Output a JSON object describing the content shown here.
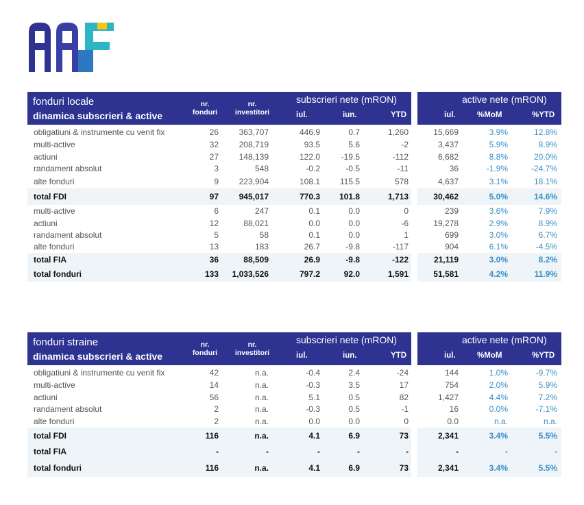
{
  "logo": {
    "name": "AAF"
  },
  "colors": {
    "header": "#2e3290",
    "shade": "#eef4f7",
    "pct": "#3a8fc8"
  },
  "tables": [
    {
      "title1": "fonduri locale",
      "title2": "dinamica subscrieri & active",
      "col_nr_fonduri": "nr.\nfonduri",
      "col_nr_investitori": "nr.\ninvestitori",
      "group_subscrieri": "subscrieri nete (mRON)",
      "group_active": "active nete (mRON)",
      "sub_iul": "iul.",
      "sub_iun": "iun.",
      "sub_ytd": "YTD",
      "act_iul": "iul.",
      "act_mom": "%MoM",
      "act_ytd": "%YTD",
      "rows": [
        {
          "label": "obligatiuni & instrumente cu venit fix",
          "nf": "26",
          "ni": "363,707",
          "s_iul": "446.9",
          "s_iun": "0.7",
          "s_ytd": "1,260",
          "a_iul": "15,669",
          "mom": "3.9%",
          "ytd": "12.8%"
        },
        {
          "label": "multi-active",
          "nf": "32",
          "ni": "208,719",
          "s_iul": "93.5",
          "s_iun": "5.6",
          "s_ytd": "-2",
          "a_iul": "3,437",
          "mom": "5.9%",
          "ytd": "8.9%"
        },
        {
          "label": "actiuni",
          "nf": "27",
          "ni": "148,139",
          "s_iul": "122.0",
          "s_iun": "-19.5",
          "s_ytd": "-112",
          "a_iul": "6,682",
          "mom": "8.8%",
          "ytd": "20.0%"
        },
        {
          "label": "randament absolut",
          "nf": "3",
          "ni": "548",
          "s_iul": "-0.2",
          "s_iun": "-0.5",
          "s_ytd": "-11",
          "a_iul": "36",
          "mom": "-1.9%",
          "ytd": "-24.7%"
        },
        {
          "label": "alte fonduri",
          "nf": "9",
          "ni": "223,904",
          "s_iul": "108.1",
          "s_iun": "115.5",
          "s_ytd": "578",
          "a_iul": "4,637",
          "mom": "3.1%",
          "ytd": "18.1%"
        },
        {
          "label": "total FDI",
          "nf": "97",
          "ni": "945,017",
          "s_iul": "770.3",
          "s_iun": "101.8",
          "s_ytd": "1,713",
          "a_iul": "30,462",
          "mom": "5.0%",
          "ytd": "14.6%"
        },
        {
          "label": "multi-active",
          "nf": "6",
          "ni": "247",
          "s_iul": "0.1",
          "s_iun": "0.0",
          "s_ytd": "0",
          "a_iul": "239",
          "mom": "3.6%",
          "ytd": "7.9%"
        },
        {
          "label": "actiuni",
          "nf": "12",
          "ni": "88,021",
          "s_iul": "0.0",
          "s_iun": "0.0",
          "s_ytd": "-6",
          "a_iul": "19,278",
          "mom": "2.9%",
          "ytd": "8.9%"
        },
        {
          "label": "randament absolut",
          "nf": "5",
          "ni": "58",
          "s_iul": "0.1",
          "s_iun": "0.0",
          "s_ytd": "1",
          "a_iul": "699",
          "mom": "3.0%",
          "ytd": "6.7%"
        },
        {
          "label": "alte fonduri",
          "nf": "13",
          "ni": "183",
          "s_iul": "26.7",
          "s_iun": "-9.8",
          "s_ytd": "-117",
          "a_iul": "904",
          "mom": "6.1%",
          "ytd": "-4.5%"
        },
        {
          "label": "total FIA",
          "nf": "36",
          "ni": "88,509",
          "s_iul": "26.9",
          "s_iun": "-9.8",
          "s_ytd": "-122",
          "a_iul": "21,119",
          "mom": "3.0%",
          "ytd": "8.2%"
        },
        {
          "label": "total fonduri",
          "nf": "133",
          "ni": "1,033,526",
          "s_iul": "797.2",
          "s_iun": "92.0",
          "s_ytd": "1,591",
          "a_iul": "51,581",
          "mom": "4.2%",
          "ytd": "11.9%"
        }
      ]
    },
    {
      "title1": "fonduri straine",
      "title2": "dinamica subscrieri & active",
      "col_nr_fonduri": "nr.\nfonduri",
      "col_nr_investitori": "nr.\ninvestitori",
      "group_subscrieri": "subscrieri nete (mRON)",
      "group_active": "active nete (mRON)",
      "sub_iul": "iul.",
      "sub_iun": "iun.",
      "sub_ytd": "YTD",
      "act_iul": "iul.",
      "act_mom": "%MoM",
      "act_ytd": "%YTD",
      "rows": [
        {
          "label": "obligatiuni & instrumente cu venit fix",
          "nf": "42",
          "ni": "n.a.",
          "s_iul": "-0.4",
          "s_iun": "2.4",
          "s_ytd": "-24",
          "a_iul": "144",
          "mom": "1.0%",
          "ytd": "-9.7%"
        },
        {
          "label": "multi-active",
          "nf": "14",
          "ni": "n.a.",
          "s_iul": "-0.3",
          "s_iun": "3.5",
          "s_ytd": "17",
          "a_iul": "754",
          "mom": "2.0%",
          "ytd": "5.9%"
        },
        {
          "label": "actiuni",
          "nf": "56",
          "ni": "n.a.",
          "s_iul": "5.1",
          "s_iun": "0.5",
          "s_ytd": "82",
          "a_iul": "1,427",
          "mom": "4.4%",
          "ytd": "7.2%"
        },
        {
          "label": "randament absolut",
          "nf": "2",
          "ni": "n.a.",
          "s_iul": "-0.3",
          "s_iun": "0.5",
          "s_ytd": "-1",
          "a_iul": "16",
          "mom": "0.0%",
          "ytd": "-7.1%"
        },
        {
          "label": "alte fonduri",
          "nf": "2",
          "ni": "n.a.",
          "s_iul": "0.0",
          "s_iun": "0.0",
          "s_ytd": "0",
          "a_iul": "0.0",
          "mom": "n.a.",
          "ytd": "n.a."
        },
        {
          "label": "total FDI",
          "nf": "116",
          "ni": "n.a.",
          "s_iul": "4.1",
          "s_iun": "6.9",
          "s_ytd": "73",
          "a_iul": "2,341",
          "mom": "3.4%",
          "ytd": "5.5%"
        },
        {
          "label": "total FIA",
          "nf": "-",
          "ni": "-",
          "s_iul": "-",
          "s_iun": "-",
          "s_ytd": "-",
          "a_iul": "-",
          "mom": "-",
          "ytd": "-"
        },
        {
          "label": "total fonduri",
          "nf": "116",
          "ni": "n.a.",
          "s_iul": "4.1",
          "s_iun": "6.9",
          "s_ytd": "73",
          "a_iul": "2,341",
          "mom": "3.4%",
          "ytd": "5.5%"
        }
      ]
    }
  ]
}
